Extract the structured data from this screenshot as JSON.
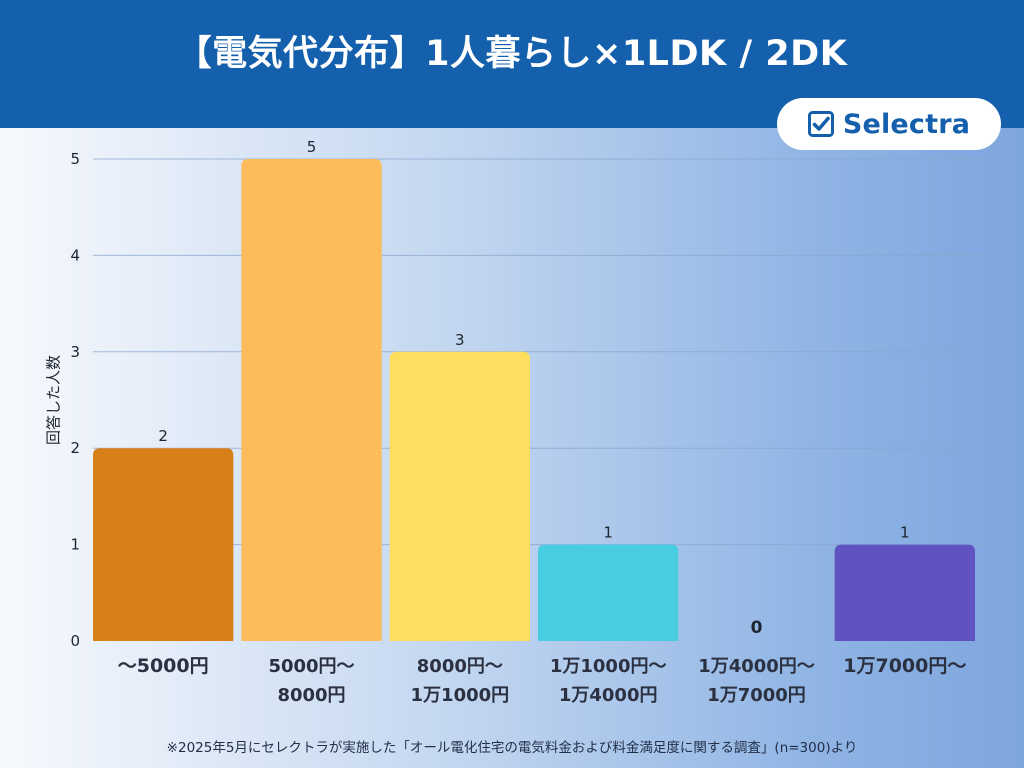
{
  "header": {
    "title": "【電気代分布】1人暮らし×1LDK / 2DK"
  },
  "logo": {
    "text": "Selectra",
    "icon": "checkbox-check-icon",
    "color": "#1560ad"
  },
  "chart_data": {
    "type": "bar",
    "title": "【電気代分布】1人暮らし×1LDK / 2DK",
    "xlabel": "",
    "ylabel": "回答した人数",
    "ylim": [
      0,
      5
    ],
    "yticks": [
      0,
      1,
      2,
      3,
      4,
      5
    ],
    "grid": true,
    "categories": [
      [
        "〜5000円"
      ],
      [
        "5000円〜",
        "8000円"
      ],
      [
        "8000円〜",
        "1万1000円"
      ],
      [
        "1万1000円〜",
        "1万4000円"
      ],
      [
        "1万4000円〜",
        "1万7000円"
      ],
      [
        "1万7000円〜"
      ]
    ],
    "values": [
      2,
      5,
      3,
      1,
      0,
      1
    ],
    "colors": [
      "#d97f19",
      "#fdbc5c",
      "#fede5f",
      "#48cce0",
      "#6a78c4",
      "#6152c2"
    ],
    "data_labels": true
  },
  "footnote": "※2025年5月にセレクトラが実施した「オール電化住宅の電気料金および料金満足度に関する調査」(n=300)より"
}
